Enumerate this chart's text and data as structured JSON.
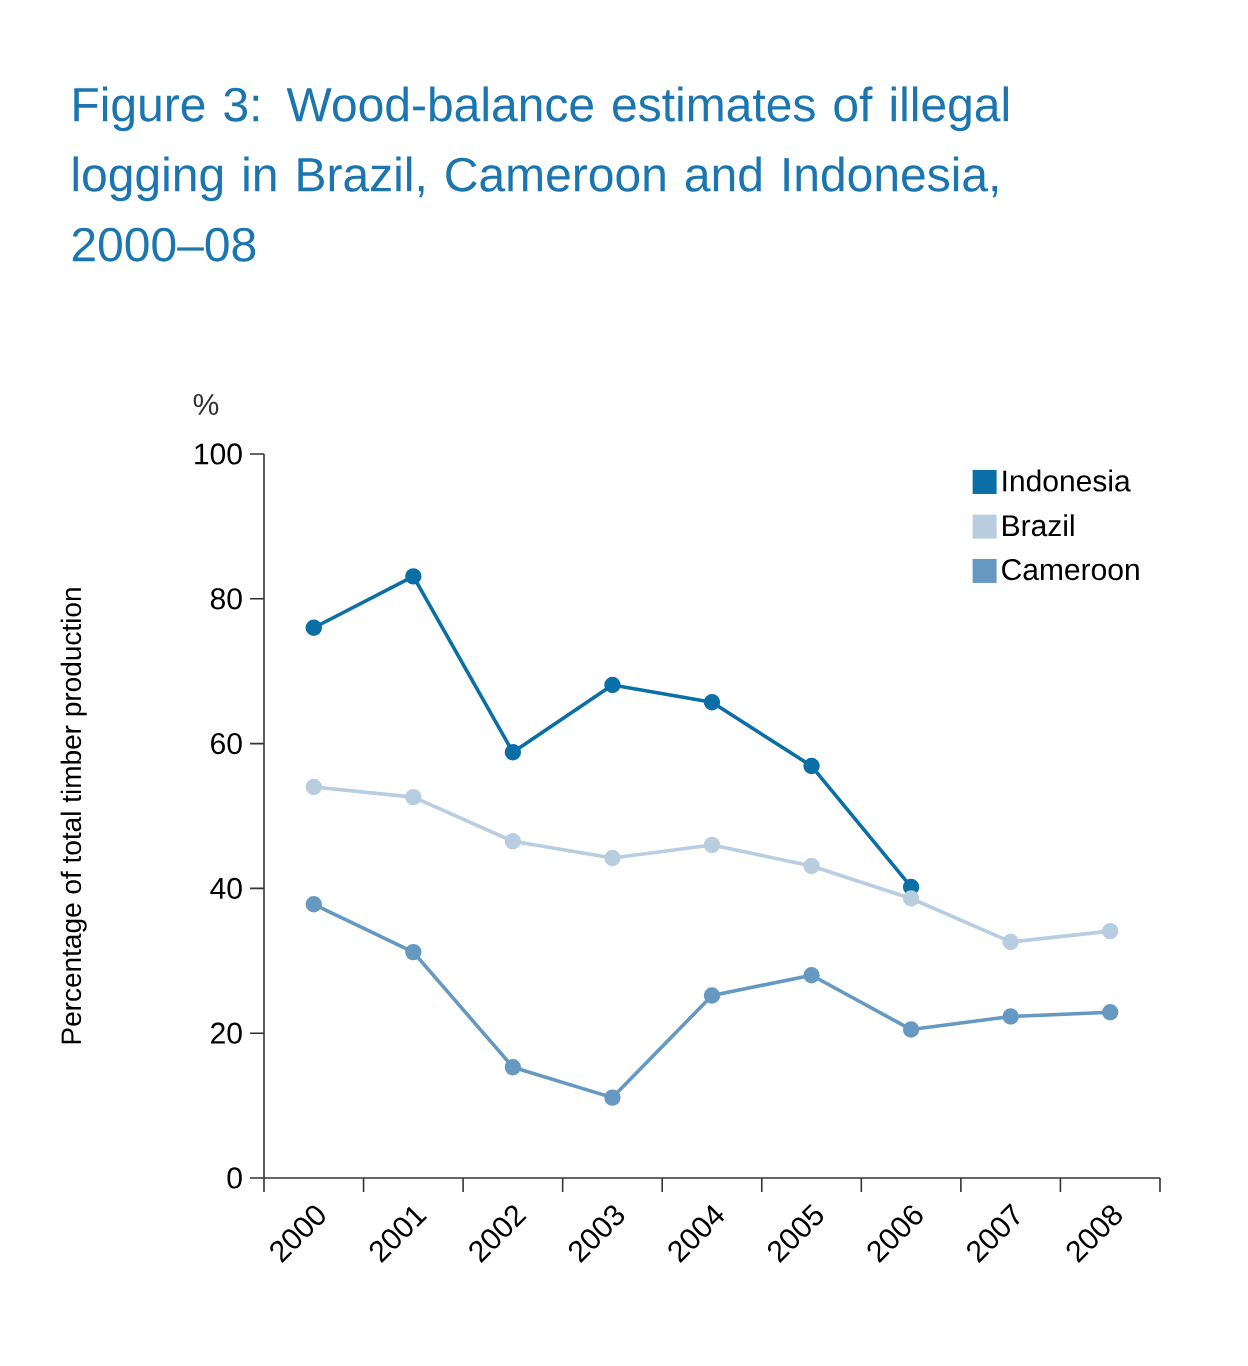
{
  "chart_data": {
    "type": "line",
    "title": "Figure 3: Wood-balance estimates of illegal logging in Brazil, Cameroon and Indonesia, 2000–08",
    "ylabel": "Percentage of total timber production",
    "annotations": [
      "%"
    ],
    "categories": [
      "2000",
      "2001",
      "2002",
      "2003",
      "2004",
      "2005",
      "2006",
      "2007",
      "2008"
    ],
    "series": [
      {
        "name": "Indonesia",
        "color": "#0a6fa6",
        "values": [
          76.0,
          83.1,
          58.8,
          68.1,
          65.7,
          56.9,
          40.2,
          null,
          null
        ]
      },
      {
        "name": "Brazil",
        "color": "#b8cde0",
        "values": [
          54.0,
          52.6,
          46.5,
          44.2,
          46.0,
          43.1,
          38.6,
          32.6,
          34.1
        ]
      },
      {
        "name": "Cameroon",
        "color": "#6699c2",
        "values": [
          37.8,
          31.2,
          15.3,
          11.1,
          25.2,
          28.0,
          20.5,
          22.3,
          22.9
        ]
      }
    ],
    "ylim": [
      0,
      100
    ],
    "yticks": [
      0,
      20,
      40,
      60,
      80,
      100
    ],
    "grid": false,
    "legend": "top right",
    "marker": "circle",
    "line_style": "solid"
  }
}
